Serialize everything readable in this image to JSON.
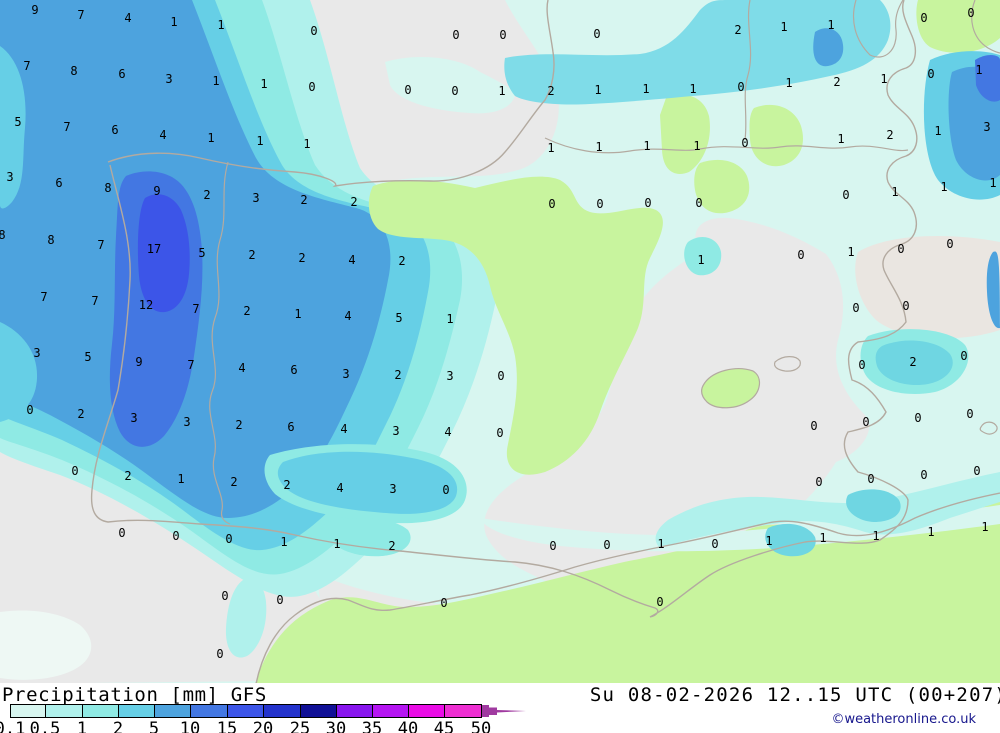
{
  "map": {
    "palette": {
      "sea": "#e9e9e9",
      "sea_warm": "#eae6e1",
      "land": "#c8f49e",
      "coast": "#b3aaa0",
      "mist": "#eef8f4",
      "r01": "#d8f6f0",
      "r05": "#b0f1ec",
      "r1": "#8feae4",
      "r1b": "#7fdce8",
      "r2": "#66cfe6",
      "r2b": "#6fd6e2",
      "r5": "#4da3de",
      "r10": "#4377e2",
      "r15": "#3c55e8",
      "r20": "#2433cc",
      "r25": "#101096",
      "r30": "#8816ee",
      "r35": "#b515f2",
      "r40": "#ea0ce6",
      "r45": "#ee2ed2",
      "overflow": "#a03aa0"
    },
    "values": [
      [
        35,
        10,
        "9"
      ],
      [
        81,
        15,
        "7"
      ],
      [
        128,
        18,
        "4"
      ],
      [
        174,
        22,
        "1"
      ],
      [
        221,
        25,
        "1"
      ],
      [
        314,
        31,
        "0"
      ],
      [
        27,
        66,
        "7"
      ],
      [
        74,
        71,
        "8"
      ],
      [
        122,
        74,
        "6"
      ],
      [
        169,
        79,
        "3"
      ],
      [
        216,
        81,
        "1"
      ],
      [
        264,
        84,
        "1"
      ],
      [
        312,
        87,
        "0"
      ],
      [
        18,
        122,
        "5"
      ],
      [
        67,
        127,
        "7"
      ],
      [
        115,
        130,
        "6"
      ],
      [
        163,
        135,
        "4"
      ],
      [
        211,
        138,
        "1"
      ],
      [
        260,
        141,
        "1"
      ],
      [
        307,
        144,
        "1"
      ],
      [
        10,
        177,
        "3"
      ],
      [
        59,
        183,
        "6"
      ],
      [
        108,
        188,
        "8"
      ],
      [
        157,
        191,
        "9"
      ],
      [
        207,
        195,
        "2"
      ],
      [
        256,
        198,
        "3"
      ],
      [
        304,
        200,
        "2"
      ],
      [
        456,
        35,
        "0"
      ],
      [
        503,
        35,
        "0"
      ],
      [
        597,
        34,
        "0"
      ],
      [
        408,
        90,
        "0"
      ],
      [
        455,
        91,
        "0"
      ],
      [
        502,
        91,
        "1"
      ],
      [
        551,
        91,
        "2"
      ],
      [
        598,
        90,
        "1"
      ],
      [
        646,
        89,
        "1"
      ],
      [
        551,
        148,
        "1"
      ],
      [
        599,
        147,
        "1"
      ],
      [
        647,
        146,
        "1"
      ],
      [
        354,
        202,
        "2"
      ],
      [
        552,
        204,
        "0"
      ],
      [
        600,
        204,
        "0"
      ],
      [
        648,
        203,
        "0"
      ],
      [
        738,
        30,
        "2"
      ],
      [
        784,
        27,
        "1"
      ],
      [
        831,
        25,
        "1"
      ],
      [
        924,
        18,
        "0"
      ],
      [
        971,
        13,
        "0"
      ],
      [
        693,
        89,
        "1"
      ],
      [
        741,
        87,
        "0"
      ],
      [
        789,
        83,
        "1"
      ],
      [
        837,
        82,
        "2"
      ],
      [
        884,
        79,
        "1"
      ],
      [
        931,
        74,
        "0"
      ],
      [
        979,
        70,
        "1"
      ],
      [
        697,
        146,
        "1"
      ],
      [
        745,
        143,
        "0"
      ],
      [
        841,
        139,
        "1"
      ],
      [
        890,
        135,
        "2"
      ],
      [
        938,
        131,
        "1"
      ],
      [
        987,
        127,
        "3"
      ],
      [
        699,
        203,
        "0"
      ],
      [
        846,
        195,
        "0"
      ],
      [
        895,
        192,
        "1"
      ],
      [
        944,
        187,
        "1"
      ],
      [
        993,
        183,
        "1"
      ],
      [
        2,
        235,
        "8"
      ],
      [
        51,
        240,
        "8"
      ],
      [
        101,
        245,
        "7"
      ],
      [
        154,
        249,
        "17"
      ],
      [
        202,
        253,
        "5"
      ],
      [
        252,
        255,
        "2"
      ],
      [
        302,
        258,
        "2"
      ],
      [
        44,
        297,
        "7"
      ],
      [
        95,
        301,
        "7"
      ],
      [
        146,
        305,
        "12"
      ],
      [
        196,
        309,
        "7"
      ],
      [
        247,
        311,
        "2"
      ],
      [
        298,
        314,
        "1"
      ],
      [
        37,
        353,
        "3"
      ],
      [
        88,
        357,
        "5"
      ],
      [
        139,
        362,
        "9"
      ],
      [
        191,
        365,
        "7"
      ],
      [
        242,
        368,
        "4"
      ],
      [
        294,
        370,
        "6"
      ],
      [
        30,
        410,
        "0"
      ],
      [
        81,
        414,
        "2"
      ],
      [
        134,
        418,
        "3"
      ],
      [
        187,
        422,
        "3"
      ],
      [
        239,
        425,
        "2"
      ],
      [
        291,
        427,
        "6"
      ],
      [
        352,
        260,
        "4"
      ],
      [
        402,
        261,
        "2"
      ],
      [
        348,
        316,
        "4"
      ],
      [
        399,
        318,
        "5"
      ],
      [
        450,
        319,
        "1"
      ],
      [
        346,
        374,
        "3"
      ],
      [
        398,
        375,
        "2"
      ],
      [
        450,
        376,
        "3"
      ],
      [
        501,
        376,
        "0"
      ],
      [
        344,
        429,
        "4"
      ],
      [
        396,
        431,
        "3"
      ],
      [
        448,
        432,
        "4"
      ],
      [
        500,
        433,
        "0"
      ],
      [
        701,
        260,
        "1"
      ],
      [
        801,
        255,
        "0"
      ],
      [
        851,
        252,
        "1"
      ],
      [
        901,
        249,
        "0"
      ],
      [
        950,
        244,
        "0"
      ],
      [
        856,
        308,
        "0"
      ],
      [
        906,
        306,
        "0"
      ],
      [
        862,
        365,
        "0"
      ],
      [
        913,
        362,
        "2"
      ],
      [
        964,
        356,
        "0"
      ],
      [
        814,
        426,
        "0"
      ],
      [
        866,
        422,
        "0"
      ],
      [
        918,
        418,
        "0"
      ],
      [
        970,
        414,
        "0"
      ],
      [
        75,
        471,
        "0"
      ],
      [
        128,
        476,
        "2"
      ],
      [
        181,
        479,
        "1"
      ],
      [
        234,
        482,
        "2"
      ],
      [
        287,
        485,
        "2"
      ],
      [
        122,
        533,
        "0"
      ],
      [
        176,
        536,
        "0"
      ],
      [
        229,
        539,
        "0"
      ],
      [
        284,
        542,
        "1"
      ],
      [
        225,
        596,
        "0"
      ],
      [
        280,
        600,
        "0"
      ],
      [
        220,
        654,
        "0"
      ],
      [
        340,
        488,
        "4"
      ],
      [
        393,
        489,
        "3"
      ],
      [
        446,
        490,
        "0"
      ],
      [
        337,
        544,
        "1"
      ],
      [
        392,
        546,
        "2"
      ],
      [
        553,
        546,
        "0"
      ],
      [
        607,
        545,
        "0"
      ],
      [
        661,
        544,
        "1"
      ],
      [
        444,
        603,
        "0"
      ],
      [
        660,
        602,
        "0"
      ],
      [
        819,
        482,
        "0"
      ],
      [
        871,
        479,
        "0"
      ],
      [
        924,
        475,
        "0"
      ],
      [
        977,
        471,
        "0"
      ],
      [
        715,
        544,
        "0"
      ],
      [
        769,
        541,
        "1"
      ],
      [
        823,
        538,
        "1"
      ],
      [
        876,
        536,
        "1"
      ],
      [
        931,
        532,
        "1"
      ],
      [
        985,
        527,
        "1"
      ]
    ]
  },
  "legend": {
    "title": "Precipitation [mm] GFS",
    "datetime": "Su 08-02-2026 12..15 UTC (00+207)",
    "copyright": "©weatheronline.co.uk",
    "bar": {
      "boundaries": [
        10,
        45,
        82,
        118,
        154,
        190,
        227,
        263,
        300,
        336,
        372,
        408,
        444,
        481
      ],
      "labels": [
        "0.1",
        "0.5",
        "1",
        "2",
        "5",
        "10",
        "15",
        "20",
        "25",
        "30",
        "35",
        "40",
        "45",
        "50"
      ],
      "colors": [
        "#d8f6f0",
        "#b0f1ec",
        "#8feae4",
        "#66cfe6",
        "#4da3de",
        "#4377e2",
        "#3c55e8",
        "#2433cc",
        "#101096",
        "#8816ee",
        "#b515f2",
        "#ea0ce6",
        "#ee2ed2"
      ],
      "overflow_arrow_color": "#a03aa0"
    }
  }
}
